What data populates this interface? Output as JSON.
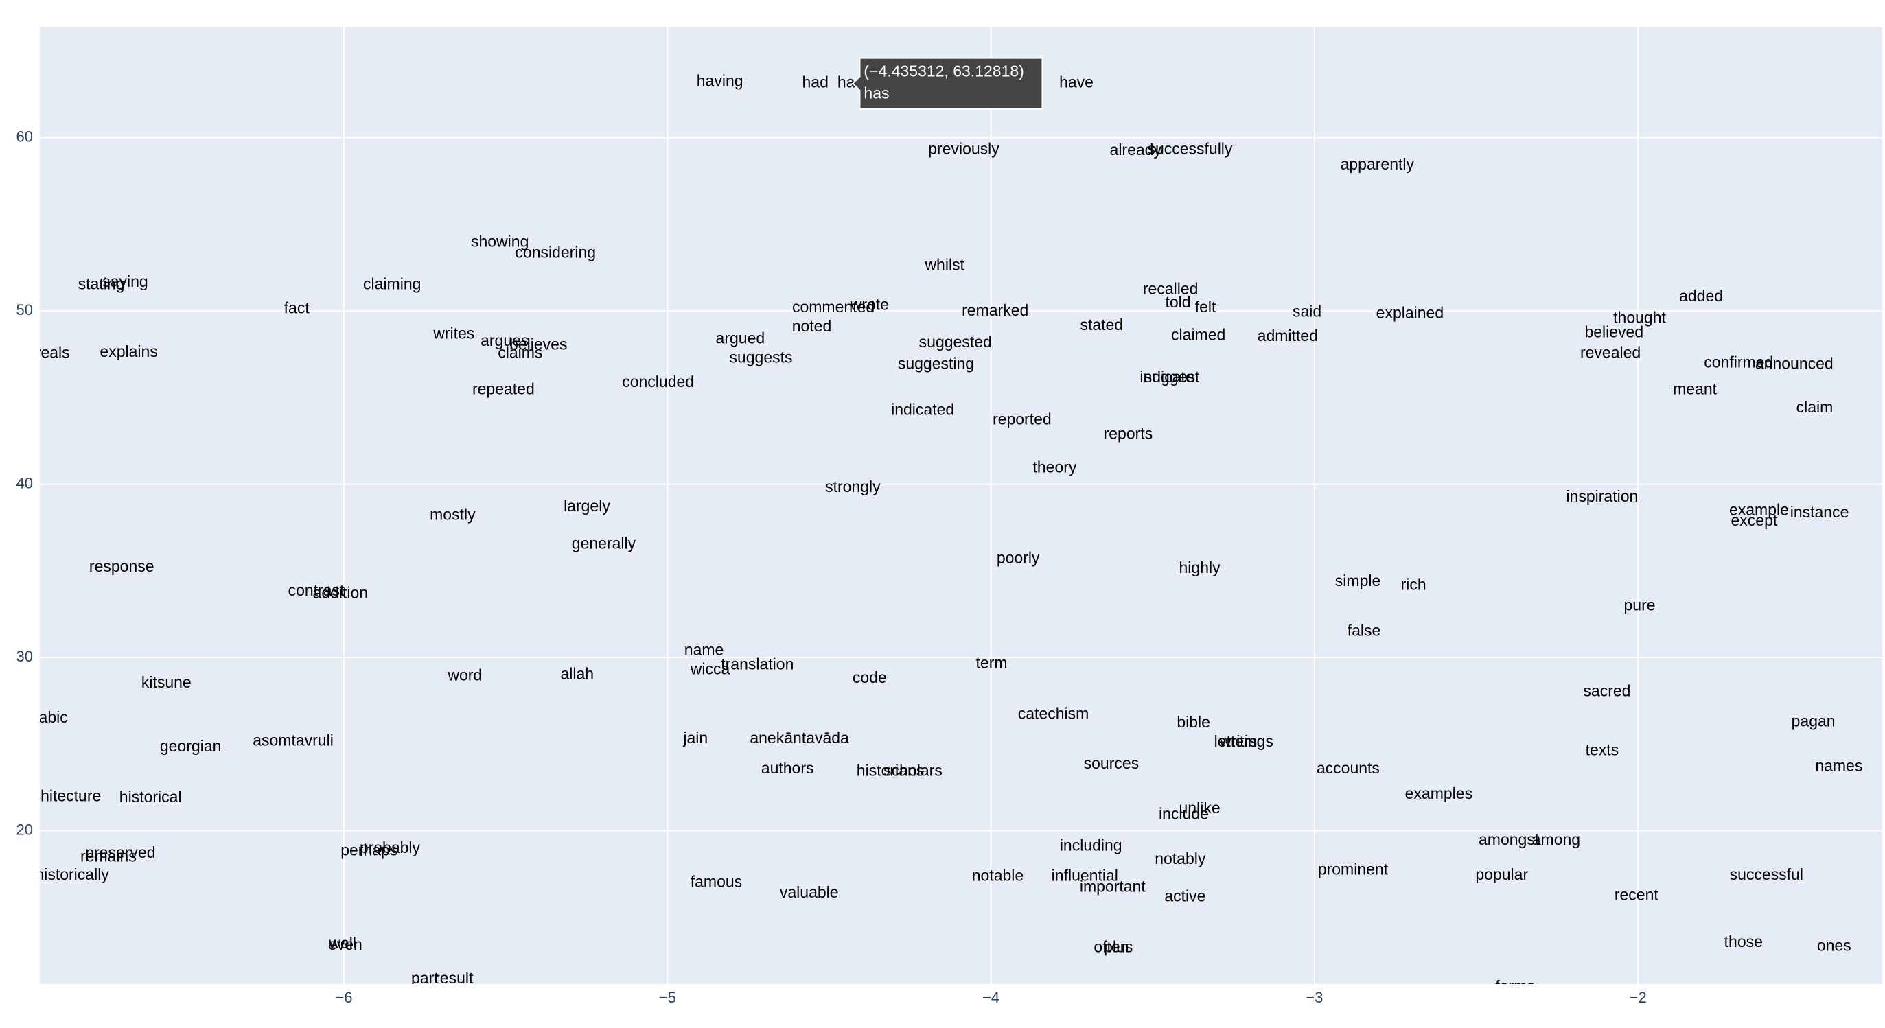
{
  "chart_data": {
    "type": "scatter",
    "mode": "text",
    "text": [
      "having",
      "had",
      "has",
      "have",
      "previously",
      "already",
      "successfully",
      "apparently",
      "showing",
      "considering",
      "whilst",
      "stating",
      "saying",
      "fact",
      "claiming",
      "explains",
      "writes",
      "argues",
      "believes",
      "claims",
      "repeated",
      "concluded",
      "argued",
      "suggests",
      "noted",
      "commented",
      "wrote",
      "remarked",
      "suggested",
      "suggesting",
      "indicated",
      "reported",
      "stated",
      "recalled",
      "told",
      "felt",
      "claimed",
      "said",
      "admitted",
      "explained",
      "indicate",
      "suggest",
      "reports",
      "theory",
      "strongly",
      "thought",
      "added",
      "believed",
      "revealed",
      "confirmed",
      "announced",
      "meant",
      "claim",
      "inspiration",
      "example",
      "except",
      "instance",
      "mostly",
      "largely",
      "generally",
      "poorly",
      "highly",
      "simple",
      "rich",
      "false",
      "pure",
      "response",
      "contrast",
      "addition",
      "kitsune",
      "word",
      "allah",
      "name",
      "wicca",
      "translation",
      "code",
      "term",
      "catechism",
      "sacred",
      "bible",
      "letters",
      "writings",
      "georgian",
      "asomtavruli",
      "jain",
      "anekāntavāda",
      "authors",
      "historians",
      "scholars",
      "sources",
      "accounts",
      "texts",
      "pagan",
      "names",
      "examples",
      "historical",
      "unlike",
      "include",
      "amongst",
      "among",
      "including",
      "notably",
      "preserved",
      "remains",
      "perhaps",
      "probably",
      "prominent",
      "popular",
      "successful",
      "famous",
      "valuable",
      "notable",
      "influential",
      "important",
      "active",
      "recent",
      "well",
      "even",
      "often",
      "plus",
      "those",
      "ones",
      "part",
      "result",
      "forms",
      "reveals",
      "arabic",
      "architecture",
      "historically"
    ],
    "x": [
      -4.838,
      -4.543,
      -4.435312,
      -3.736,
      -4.084,
      -3.553,
      -3.385,
      -2.806,
      -5.518,
      -5.346,
      -4.143,
      -6.75,
      -6.676,
      -6.146,
      -5.851,
      -6.665,
      -5.66,
      -5.503,
      -5.399,
      -5.455,
      -5.507,
      -5.029,
      -4.775,
      -4.711,
      -4.554,
      -4.487,
      -4.375,
      -3.987,
      -4.11,
      -4.17,
      -4.211,
      -3.904,
      -3.658,
      -3.445,
      -3.422,
      -3.337,
      -3.359,
      -3.023,
      -3.083,
      -2.705,
      -3.456,
      -3.441,
      -3.576,
      -3.803,
      -4.427,
      -1.995,
      -1.805,
      -2.074,
      -2.085,
      -1.689,
      -1.517,
      -1.824,
      -1.454,
      -2.111,
      -1.626,
      -1.641,
      -1.439,
      -5.664,
      -5.249,
      -5.197,
      -3.916,
      -3.355,
      -2.866,
      -2.694,
      -2.847,
      -1.995,
      -6.687,
      -6.086,
      -6.011,
      -6.549,
      -5.626,
      -5.279,
      -4.887,
      -4.868,
      -4.722,
      -4.375,
      -3.998,
      -3.807,
      -2.096,
      -3.374,
      -3.244,
      -3.21,
      -6.474,
      -6.157,
      -4.913,
      -4.592,
      -4.629,
      -4.311,
      -4.241,
      -3.628,
      -2.896,
      -2.111,
      -1.458,
      -1.379,
      -2.616,
      -6.598,
      -3.355,
      -3.404,
      -2.399,
      -2.253,
      -3.691,
      -3.415,
      -6.691,
      -6.728,
      -5.922,
      -5.858,
      -2.881,
      -2.421,
      -1.603,
      -4.849,
      -4.562,
      -3.979,
      -3.71,
      -3.624,
      -3.4,
      -2.005,
      -6.004,
      -5.996,
      -3.628,
      -3.606,
      -1.674,
      -1.394,
      -5.75,
      -5.66,
      -2.38,
      -6.926,
      -6.92,
      -6.878,
      -6.84
    ],
    "values": [
      63.21,
      63.14,
      63.12818,
      63.14,
      59.3,
      59.23,
      59.3,
      58.4,
      53.94,
      53.31,
      52.61,
      51.5,
      51.64,
      50.1,
      51.5,
      47.6,
      48.64,
      48.22,
      48.01,
      47.53,
      45.44,
      45.85,
      48.36,
      47.25,
      49.06,
      50.17,
      50.31,
      49.97,
      48.15,
      46.9,
      44.25,
      43.69,
      49.13,
      51.22,
      50.45,
      50.17,
      48.57,
      49.9,
      48.5,
      49.83,
      46.13,
      46.13,
      42.86,
      40.91,
      39.79,
      49.55,
      50.8,
      48.71,
      47.53,
      46.97,
      46.9,
      45.44,
      44.39,
      39.23,
      38.47,
      37.84,
      38.33,
      38.19,
      38.68,
      36.52,
      35.68,
      35.12,
      34.36,
      34.15,
      31.5,
      32.96,
      35.19,
      33.8,
      33.66,
      28.5,
      28.92,
      28.99,
      30.38,
      29.27,
      29.55,
      28.78,
      29.62,
      26.69,
      28.01,
      26.21,
      25.09,
      25.09,
      24.81,
      25.16,
      25.3,
      25.3,
      23.55,
      23.41,
      23.41,
      23.83,
      23.55,
      24.6,
      26.27,
      23.69,
      22.09,
      21.88,
      21.25,
      20.91,
      19.44,
      19.44,
      19.09,
      18.33,
      18.68,
      18.47,
      18.82,
      18.96,
      17.7,
      17.42,
      17.42,
      17.0,
      16.38,
      17.35,
      17.35,
      16.72,
      16.17,
      16.24,
      13.45,
      13.38,
      13.24,
      13.24,
      13.52,
      13.31,
      11.43,
      11.43,
      10.95,
      47.53,
      26.48,
      21.95,
      17.42
    ],
    "xlim": [
      -6.94,
      -1.245
    ],
    "ylim": [
      11.15,
      66.4
    ],
    "xticks": [
      {
        "value": -6,
        "label": "−6"
      },
      {
        "value": -5,
        "label": "−5"
      },
      {
        "value": -4,
        "label": "−4"
      },
      {
        "value": -3,
        "label": "−3"
      },
      {
        "value": -2,
        "label": "−2"
      }
    ],
    "yticks": [
      20,
      30,
      40,
      50,
      60
    ],
    "grid": true,
    "color": "#000000",
    "background": "#e5ecf6",
    "tooltip": {
      "label": "(−4.435312, 63.12818)",
      "text": "has",
      "x": -4.435312,
      "y": 63.12818
    }
  }
}
